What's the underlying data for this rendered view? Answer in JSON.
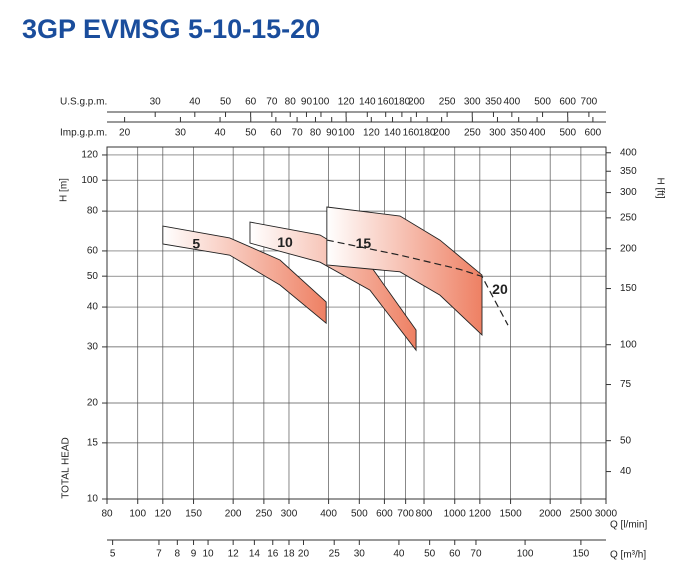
{
  "chart_data": {
    "type": "pump-curves",
    "title": "3GP EVMSG 5-10-15-20",
    "x_label": "Q [l/min]",
    "y_label": "H [m]",
    "y_side_label": "TOTAL HEAD",
    "y2_label": "H [ft]",
    "log_x": true,
    "log_y": true,
    "grid": true,
    "xlim": [
      80,
      3000
    ],
    "xticks": [
      80,
      100,
      120,
      150,
      200,
      250,
      300,
      400,
      500,
      600,
      700,
      800,
      1000,
      1200,
      1500,
      2000,
      2500,
      3000
    ],
    "ylim": [
      10,
      127.1
    ],
    "yticks": [
      10,
      15,
      20,
      30,
      40,
      50,
      60,
      80,
      100,
      120
    ],
    "y2lim": [
      32.81,
      417
    ],
    "y2ticks": [
      40,
      50,
      75,
      100,
      150,
      200,
      250,
      300,
      350,
      400
    ],
    "us_gpm_axis": {
      "label": "U.S.g.p.m.",
      "lim": [
        21.14,
        792.6
      ],
      "ticks": [
        30,
        40,
        50,
        60,
        70,
        80,
        90,
        100,
        120,
        140,
        160,
        180,
        200,
        250,
        300,
        350,
        400,
        500,
        600,
        700
      ]
    },
    "imp_gpm_axis": {
      "label": "Imp.g.p.m.",
      "lim": [
        17.6,
        659.9
      ],
      "ticks": [
        20,
        30,
        40,
        50,
        60,
        70,
        80,
        90,
        100,
        120,
        140,
        160,
        180,
        200,
        250,
        300,
        350,
        400,
        500,
        600
      ]
    },
    "m3h_axis": {
      "label": "Q [m³/h]",
      "lim": [
        4.8,
        180
      ],
      "ticks": [
        5,
        7,
        8,
        9,
        10,
        12,
        14,
        16,
        18,
        20,
        25,
        30,
        40,
        50,
        60,
        70,
        100,
        150
      ]
    },
    "series": [
      {
        "name": "5",
        "color": "#ee8063",
        "x": [
          120,
          195,
          281,
          393
        ],
        "upper": [
          71.8,
          65.9,
          56.2,
          41.5
        ],
        "lower": [
          63.1,
          58.2,
          46.9,
          35.6
        ]
      },
      {
        "name": "10",
        "color": "#ee8063",
        "x": [
          226,
          376,
          540,
          755
        ],
        "upper": [
          73.9,
          67.3,
          54.2,
          33.9
        ],
        "lower": [
          63.5,
          55.3,
          45.2,
          29.3
        ]
      },
      {
        "name": "15",
        "color": "#ee8063",
        "x": [
          395,
          672,
          898,
          1219
        ],
        "upper": [
          82.4,
          77.2,
          64.9,
          50.4
        ],
        "lower": [
          54.2,
          51.6,
          43.6,
          32.7
        ]
      },
      {
        "name": "20",
        "color": "#222222",
        "x": [
          395,
          672,
          1040,
          1219,
          1472
        ],
        "upper": [
          64.9,
          58.2,
          52.5,
          49.9,
          35.1
        ]
      }
    ]
  }
}
